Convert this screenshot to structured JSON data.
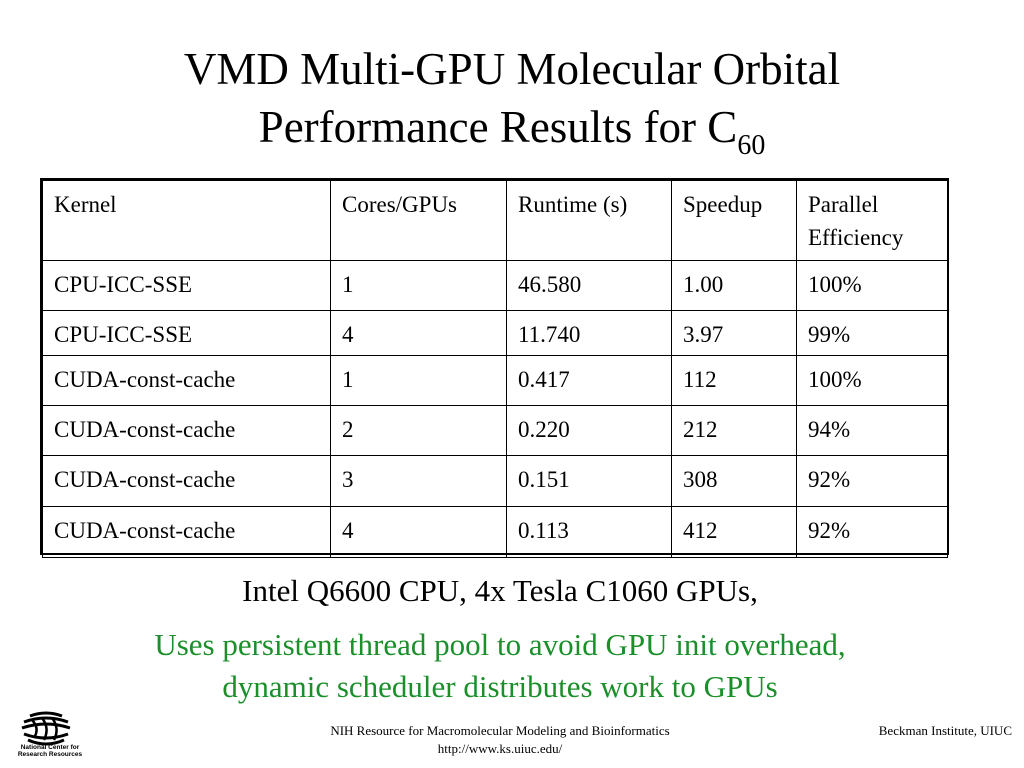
{
  "slide": {
    "title_line1": "VMD Multi-GPU Molecular Orbital",
    "title_line2_main": "Performance Results for C",
    "title_line2_sub": "60",
    "caption": "Intel Q6600 CPU, 4x Tesla C1060 GPUs,",
    "note_line1": "Uses persistent thread pool to avoid GPU init overhead,",
    "note_line2": "dynamic scheduler distributes work to GPUs",
    "note_color": "#1a8f2a"
  },
  "table": {
    "headers": [
      "Kernel",
      "Cores/GPUs",
      "Runtime (s)",
      "Speedup",
      "Parallel Efficiency"
    ],
    "rows": [
      [
        "CPU-ICC-SSE",
        "1",
        "46.580",
        "1.00",
        "100%"
      ],
      [
        "CPU-ICC-SSE",
        "4",
        "11.740",
        "3.97",
        "99%"
      ],
      [
        "CUDA-const-cache",
        "1",
        "0.417",
        "112",
        "100%"
      ],
      [
        "CUDA-const-cache",
        "2",
        "0.220",
        "212",
        "94%"
      ],
      [
        "CUDA-const-cache",
        "3",
        "0.151",
        "308",
        "92%"
      ],
      [
        "CUDA-const-cache",
        "4",
        "0.113",
        "412",
        "92%"
      ]
    ]
  },
  "footer": {
    "logo_text_line1": "National Center for",
    "logo_text_line2": "Research Resources",
    "center_line1": "NIH Resource for Macromolecular Modeling and Bioinformatics",
    "center_line2": "http://www.ks.uiuc.edu/",
    "right": "Beckman Institute, UIUC"
  }
}
